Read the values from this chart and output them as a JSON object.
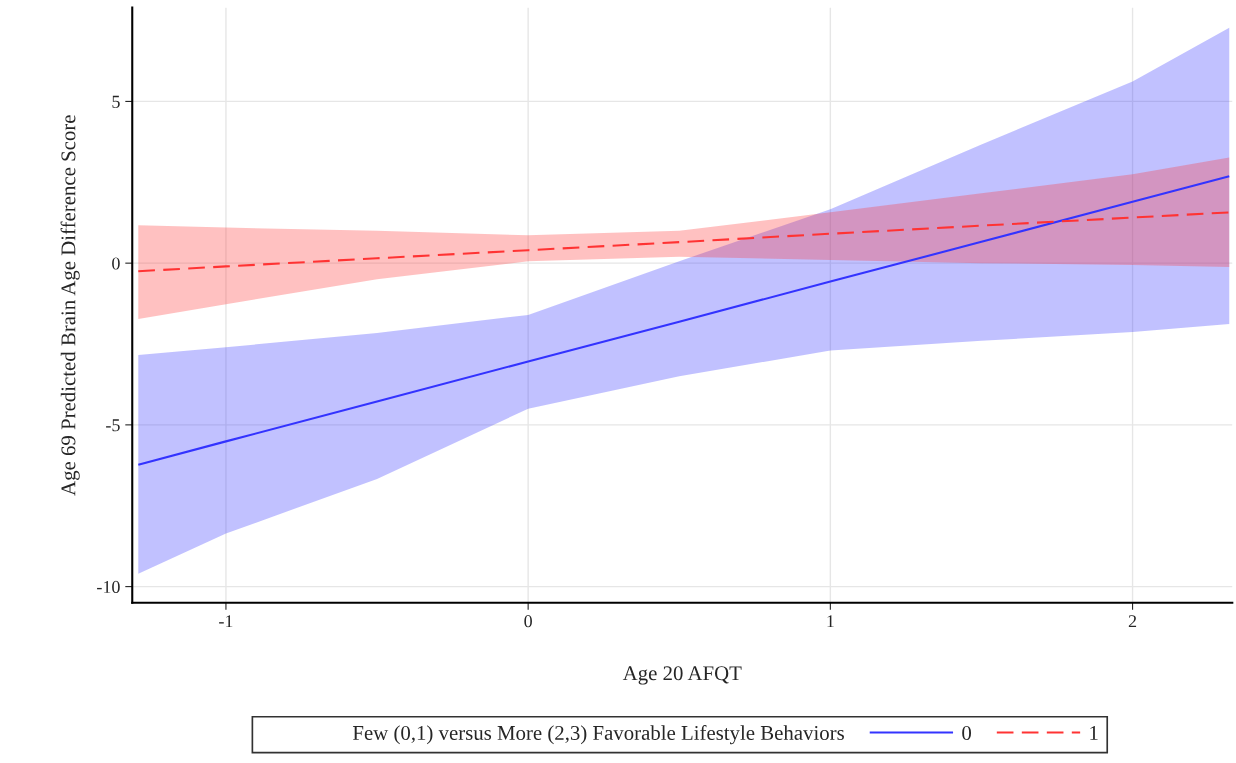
{
  "chart_data": {
    "type": "line",
    "xlabel": "Age 20 AFQT",
    "ylabel": "Age 69 Predicted Brain Age Difference Score",
    "legend_title": "Few (0,1) versus More (2,3) Favorable Lifestyle Behaviors",
    "xlim": [
      -1.31,
      2.33
    ],
    "ylim": [
      -10.5,
      7.9
    ],
    "xticks": [
      -1,
      0,
      1,
      2
    ],
    "yticks": [
      -10,
      -5,
      0,
      5
    ],
    "grid": true,
    "legend": "bottom",
    "series": [
      {
        "name": "0",
        "color": "#3333ff",
        "line_style": "solid",
        "x": [
          -1.29,
          -1,
          -0.5,
          0,
          0.5,
          1,
          1.5,
          2,
          2.32
        ],
        "values": [
          -6.23,
          -5.51,
          -4.28,
          -3.04,
          -1.81,
          -0.57,
          0.66,
          1.9,
          2.69
        ],
        "lower": [
          -9.6,
          -8.36,
          -6.67,
          -4.5,
          -3.5,
          -2.7,
          -2.4,
          -2.13,
          -1.88
        ],
        "upper": [
          -2.84,
          -2.6,
          -2.16,
          -1.6,
          0.06,
          1.67,
          3.67,
          5.62,
          7.28
        ]
      },
      {
        "name": "1",
        "color": "#ff3333",
        "line_style": "dashed",
        "x": [
          -1.29,
          -1,
          -0.5,
          0,
          0.5,
          1,
          1.5,
          2,
          2.32
        ],
        "values": [
          -0.25,
          -0.1,
          0.15,
          0.4,
          0.65,
          0.91,
          1.16,
          1.41,
          1.57
        ],
        "lower": [
          -1.73,
          -1.27,
          -0.5,
          0.06,
          0.2,
          0.1,
          0.0,
          -0.06,
          -0.12
        ],
        "upper": [
          1.17,
          1.1,
          1.0,
          0.86,
          1.0,
          1.57,
          2.16,
          2.75,
          3.27
        ]
      }
    ]
  }
}
